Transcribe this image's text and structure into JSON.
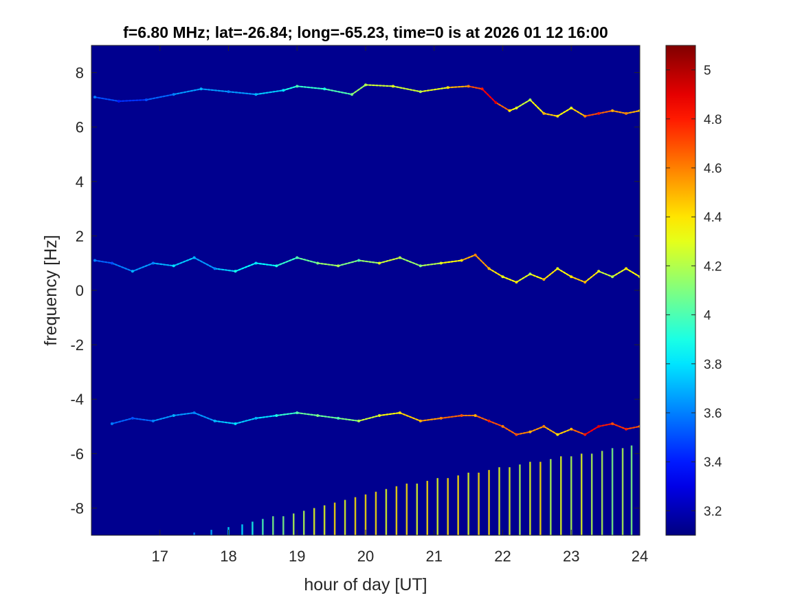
{
  "chart_data": {
    "type": "heatmap",
    "title": "f=6.80 MHz;  lat=-26.84; long=-65.23, time=0 is at 2026 01 12 16:00",
    "xlabel": "hour of day [UT]",
    "ylabel": "frequency [Hz]",
    "xlim": [
      16,
      24
    ],
    "ylim": [
      -9,
      9
    ],
    "xticks": [
      17,
      18,
      19,
      20,
      21,
      22,
      23,
      24
    ],
    "yticks": [
      -8,
      -6,
      -4,
      -2,
      0,
      2,
      4,
      6,
      8
    ],
    "colormap": "jet",
    "background_color": "#00008f",
    "colorbar": {
      "clim": [
        3.1,
        5.1
      ],
      "ticks": [
        3.2,
        3.4,
        3.6,
        3.8,
        4,
        4.2,
        4.4,
        4.6,
        4.8,
        5
      ]
    },
    "series": [
      {
        "x": [
          16.05,
          16.4,
          16.8,
          17.2,
          17.6,
          18.0,
          18.4,
          18.8,
          19.0,
          19.4,
          19.8,
          20.0,
          20.4,
          20.8,
          21.2,
          21.5,
          21.7,
          21.9,
          22.1,
          22.2,
          22.4,
          22.6,
          22.8,
          23.0,
          23.2,
          23.4,
          23.6,
          23.8,
          24.0
        ],
        "y": [
          7.1,
          6.95,
          7.0,
          7.2,
          7.4,
          7.3,
          7.2,
          7.35,
          7.5,
          7.4,
          7.2,
          7.55,
          7.5,
          7.3,
          7.45,
          7.5,
          7.4,
          6.9,
          6.6,
          6.7,
          7.0,
          6.5,
          6.4,
          6.7,
          6.4,
          6.5,
          6.6,
          6.5,
          6.6
        ],
        "intensity": [
          3.6,
          3.4,
          3.5,
          3.6,
          3.7,
          3.6,
          3.7,
          3.8,
          4.0,
          3.9,
          4.1,
          4.2,
          4.3,
          4.2,
          4.4,
          4.6,
          4.8,
          4.9,
          4.4,
          4.3,
          4.2,
          4.5,
          4.4,
          4.3,
          4.6,
          4.8,
          4.5,
          4.6,
          4.4
        ]
      },
      {
        "x": [
          16.05,
          16.3,
          16.6,
          16.9,
          17.2,
          17.5,
          17.8,
          18.1,
          18.4,
          18.7,
          19.0,
          19.3,
          19.6,
          19.9,
          20.2,
          20.5,
          20.8,
          21.1,
          21.4,
          21.6,
          21.8,
          22.0,
          22.2,
          22.4,
          22.6,
          22.8,
          23.0,
          23.2,
          23.4,
          23.6,
          23.8,
          24.0
        ],
        "y": [
          1.1,
          1.0,
          0.7,
          1.0,
          0.9,
          1.2,
          0.8,
          0.7,
          1.0,
          0.9,
          1.2,
          1.0,
          0.9,
          1.1,
          1.0,
          1.2,
          0.9,
          1.0,
          1.1,
          1.3,
          0.8,
          0.5,
          0.3,
          0.6,
          0.4,
          0.8,
          0.5,
          0.3,
          0.7,
          0.5,
          0.8,
          0.5
        ],
        "intensity": [
          3.6,
          3.5,
          3.7,
          3.6,
          3.8,
          3.7,
          3.6,
          3.9,
          3.8,
          3.9,
          4.0,
          4.1,
          4.2,
          4.0,
          4.3,
          4.2,
          4.1,
          4.3,
          4.4,
          4.6,
          4.5,
          4.3,
          4.4,
          4.2,
          4.5,
          4.3,
          4.4,
          4.5,
          4.3,
          4.2,
          4.4,
          4.3
        ]
      },
      {
        "x": [
          16.3,
          16.6,
          16.9,
          17.2,
          17.5,
          17.8,
          18.1,
          18.4,
          18.7,
          19.0,
          19.3,
          19.6,
          19.9,
          20.2,
          20.5,
          20.8,
          21.1,
          21.4,
          21.6,
          21.8,
          22.0,
          22.2,
          22.4,
          22.6,
          22.8,
          23.0,
          23.2,
          23.4,
          23.6,
          23.8,
          24.0
        ],
        "y": [
          -4.9,
          -4.7,
          -4.8,
          -4.6,
          -4.5,
          -4.8,
          -4.9,
          -4.7,
          -4.6,
          -4.5,
          -4.6,
          -4.7,
          -4.8,
          -4.6,
          -4.5,
          -4.8,
          -4.7,
          -4.6,
          -4.6,
          -4.8,
          -5.0,
          -5.3,
          -5.2,
          -5.0,
          -5.3,
          -5.1,
          -5.3,
          -5.0,
          -4.9,
          -5.1,
          -5.0
        ],
        "intensity": [
          3.6,
          3.5,
          3.6,
          3.7,
          3.6,
          3.7,
          3.8,
          3.7,
          3.9,
          4.0,
          4.1,
          4.0,
          4.2,
          4.3,
          4.4,
          4.5,
          4.6,
          4.7,
          4.5,
          4.8,
          4.6,
          4.7,
          4.5,
          4.6,
          4.4,
          4.5,
          4.8,
          4.9,
          4.7,
          4.8,
          4.6
        ]
      }
    ],
    "spikes": {
      "x": [
        17.5,
        17.75,
        18.0,
        18.2,
        18.35,
        18.5,
        18.65,
        18.8,
        18.95,
        19.1,
        19.25,
        19.4,
        19.55,
        19.7,
        19.85,
        20.0,
        20.15,
        20.3,
        20.45,
        20.6,
        20.75,
        20.9,
        21.05,
        21.2,
        21.35,
        21.5,
        21.65,
        21.8,
        21.95,
        22.1,
        22.25,
        22.4,
        22.55,
        22.7,
        22.85,
        23.0,
        23.15,
        23.3,
        23.45,
        23.6,
        23.75,
        23.88
      ],
      "top": [
        -8.9,
        -8.8,
        -8.7,
        -8.6,
        -8.5,
        -8.4,
        -8.3,
        -8.3,
        -8.2,
        -8.1,
        -8.0,
        -7.9,
        -7.8,
        -7.7,
        -7.6,
        -7.5,
        -7.4,
        -7.3,
        -7.2,
        -7.1,
        -7.1,
        -7.0,
        -6.9,
        -6.9,
        -6.8,
        -6.7,
        -6.7,
        -6.6,
        -6.5,
        -6.5,
        -6.4,
        -6.3,
        -6.3,
        -6.2,
        -6.1,
        -6.1,
        -6.0,
        -6.0,
        -5.9,
        -5.8,
        -5.8,
        -5.7
      ],
      "intensity": [
        3.6,
        3.7,
        3.8,
        3.8,
        3.9,
        4.0,
        4.1,
        4.1,
        4.2,
        4.2,
        4.3,
        4.3,
        4.4,
        4.3,
        4.4,
        4.4,
        4.4,
        4.3,
        4.4,
        4.4,
        4.3,
        4.4,
        4.3,
        4.4,
        4.4,
        4.3,
        4.4,
        4.4,
        4.3,
        4.3,
        4.2,
        4.3,
        4.4,
        4.2,
        4.3,
        4.2,
        4.3,
        4.2,
        4.2,
        4.1,
        4.2,
        4.1
      ]
    }
  }
}
